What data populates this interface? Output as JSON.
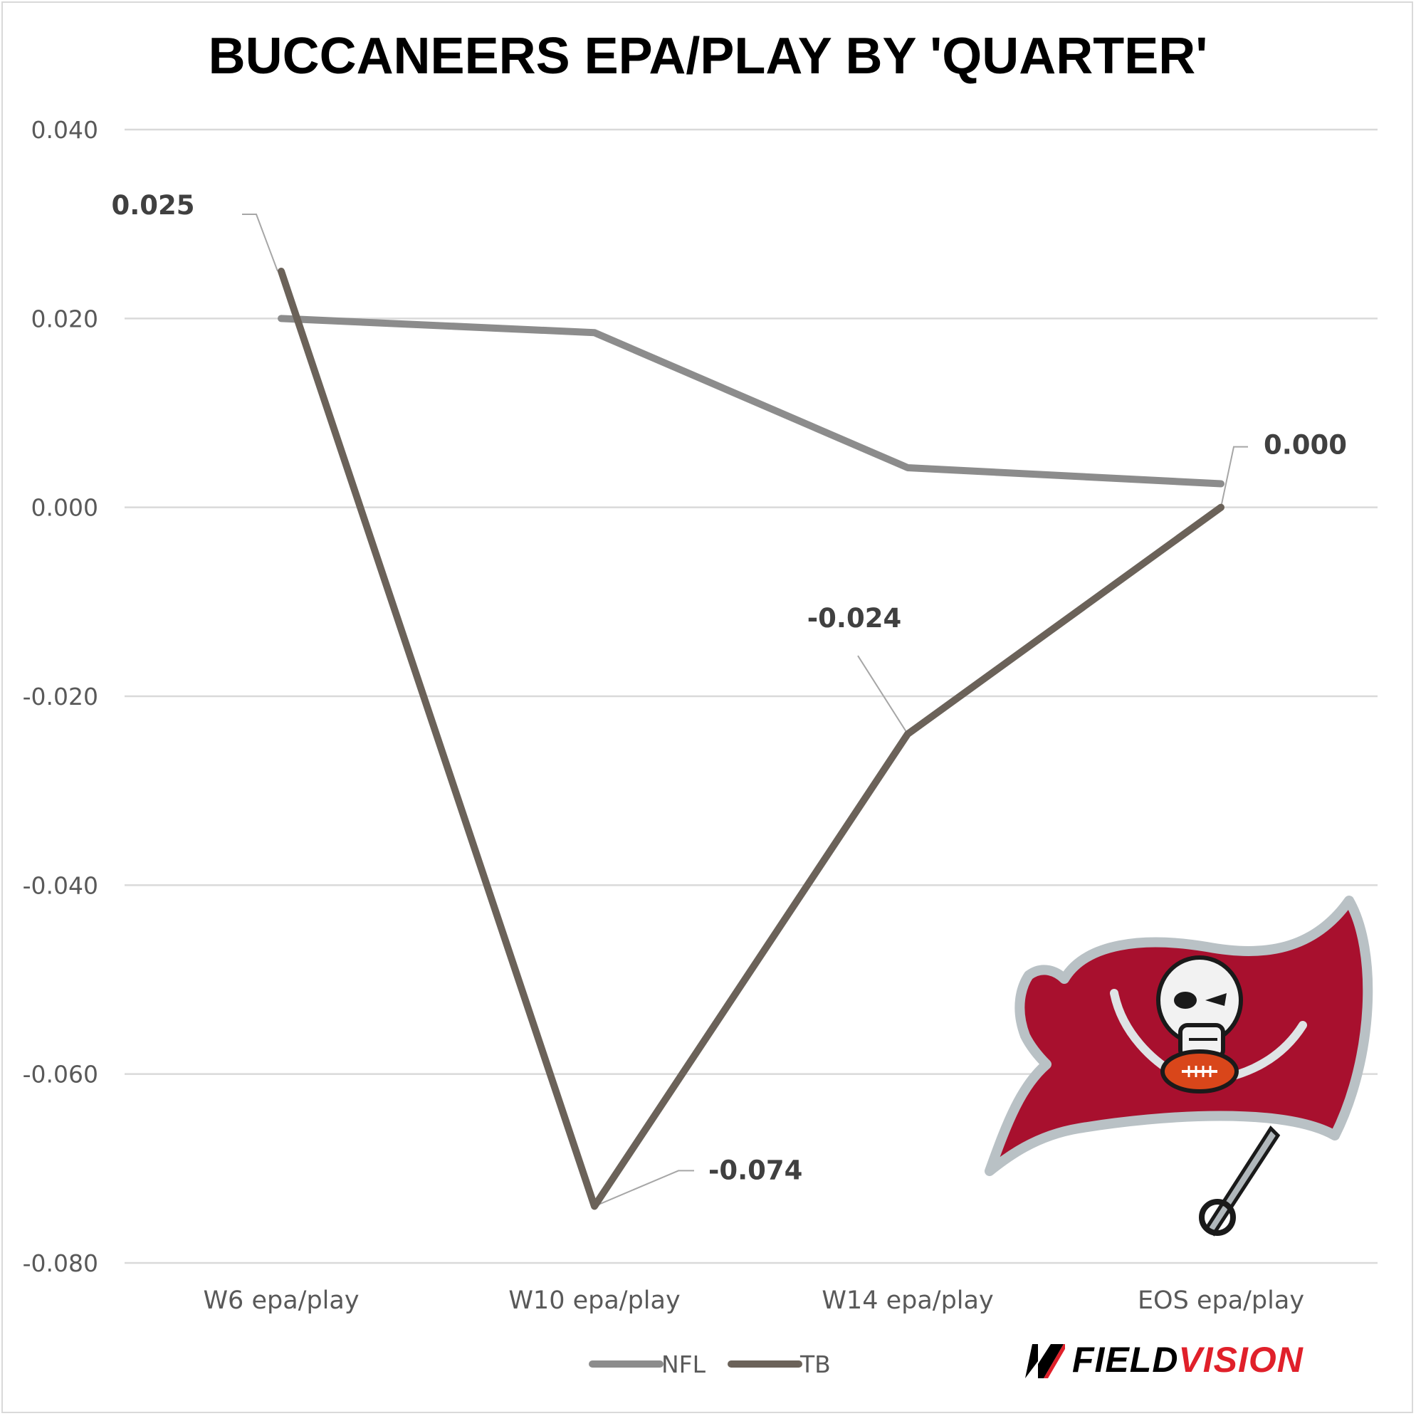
{
  "chart_data": {
    "type": "line",
    "title": "BUCCANEERS EPA/PLAY BY 'QUARTER'",
    "categories": [
      "W6 epa/play",
      "W10 epa/play",
      "W14 epa/play",
      "EOS epa/play"
    ],
    "y_ticks": [
      "0.040",
      "0.020",
      "0.000",
      "-0.020",
      "-0.040",
      "-0.060",
      "-0.080"
    ],
    "ylim": [
      -0.08,
      0.04
    ],
    "grid": true,
    "legend_position": "bottom",
    "series": [
      {
        "name": "NFL",
        "values": [
          0.02,
          0.0185,
          0.0042,
          0.0025
        ],
        "color": "#8c8c8c"
      },
      {
        "name": "TB",
        "values": [
          0.025,
          -0.074,
          -0.024,
          0.0
        ],
        "color": "#6b6259"
      }
    ],
    "data_labels": [
      "0.025",
      "-0.074",
      "-0.024",
      "0.000"
    ]
  },
  "branding": {
    "logo_text_1": "FIELD",
    "logo_text_2": "VISION",
    "logo_mark": "M",
    "team_logo": "buccaneers-flag-logo",
    "colors": {
      "brand_red": "#e0202a",
      "flag_red": "#a8102e"
    }
  }
}
